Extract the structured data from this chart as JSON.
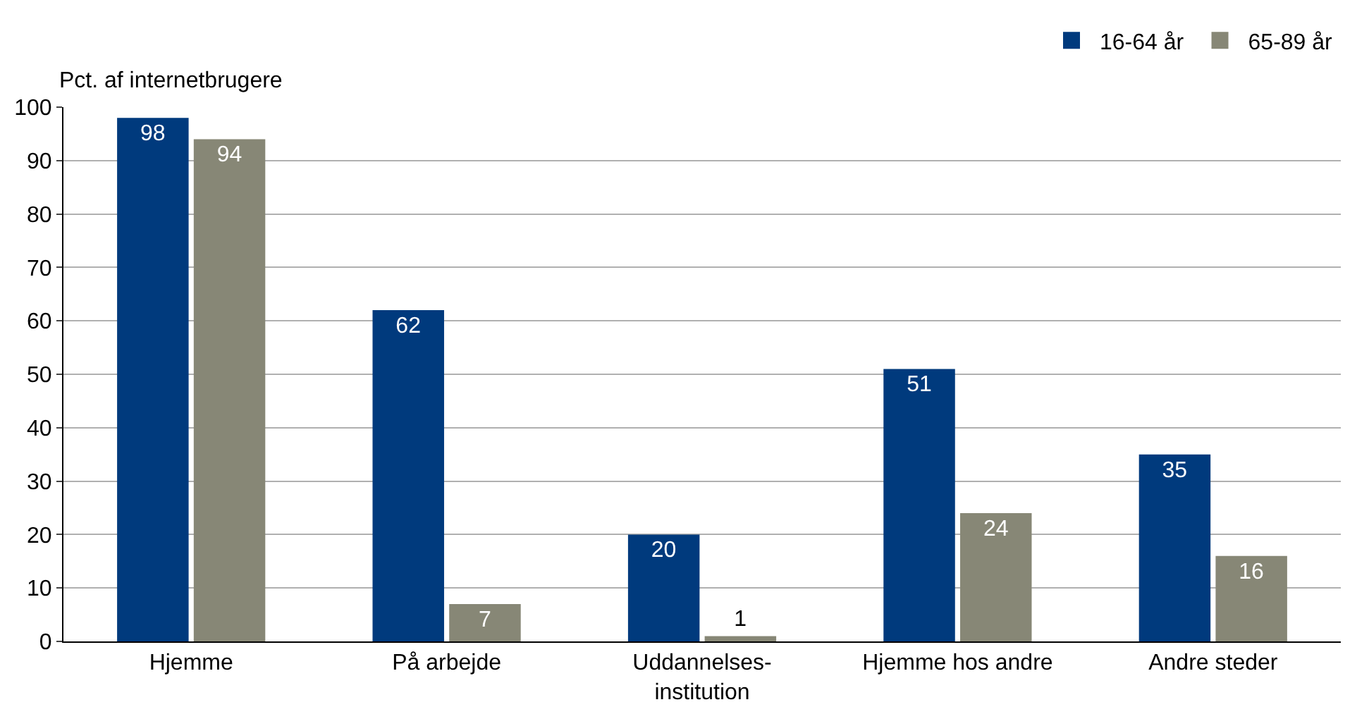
{
  "chart_data": {
    "type": "bar",
    "ylabel": "Pct. af internetbrugere",
    "categories": [
      "Hjemme",
      "På arbejde",
      "Uddannelses-\ninstitution",
      "Hjemme hos andre",
      "Andre steder"
    ],
    "series": [
      {
        "name": "16-64 år",
        "color": "#003a7d",
        "values": [
          98,
          62,
          20,
          51,
          35
        ]
      },
      {
        "name": "65-89 år",
        "color": "#878776",
        "values": [
          94,
          7,
          1,
          24,
          16
        ]
      }
    ],
    "ylim": [
      0,
      100
    ],
    "yticks": [
      0,
      10,
      20,
      30,
      40,
      50,
      60,
      70,
      80,
      90,
      100
    ],
    "grid": "y",
    "legend": "top right",
    "data_labels": true
  }
}
